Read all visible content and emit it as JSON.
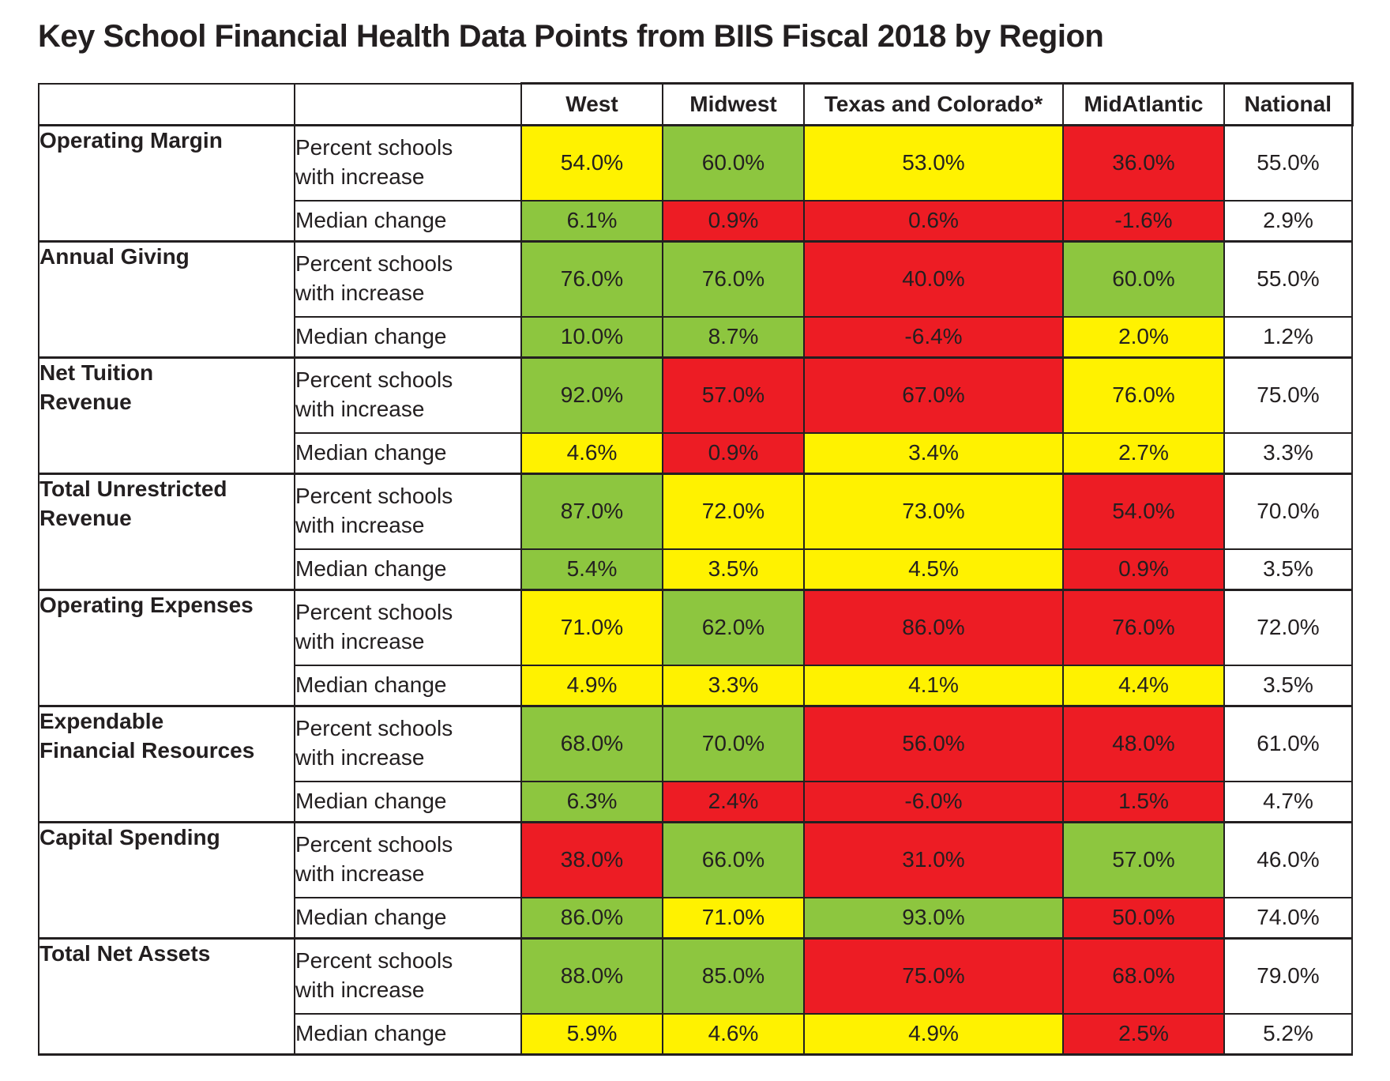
{
  "colors": {
    "green": "#8DC63F",
    "yellow": "#FFF200",
    "red": "#ED1C24",
    "none": "#FFFFFF",
    "text": "#231F20",
    "border": "#231F20"
  },
  "chart_data": {
    "type": "table",
    "title": "Key School Financial Health Data Points from BIIS Fiscal 2018 by Region",
    "region_columns": [
      "West",
      "Midwest",
      "Texas and Colorado*",
      "MidAtlantic",
      "National"
    ],
    "measure_labels": [
      "Percent schools\nwith increase",
      "Median change"
    ],
    "groups": [
      {
        "metric": "Operating Margin",
        "percent_values": [
          "54.0%",
          "60.0%",
          "53.0%",
          "36.0%",
          "55.0%"
        ],
        "percent_colors": [
          "yellow",
          "green",
          "yellow",
          "red",
          "none"
        ],
        "median_values": [
          "6.1%",
          "0.9%",
          "0.6%",
          "-1.6%",
          "2.9%"
        ],
        "median_colors": [
          "green",
          "red",
          "red",
          "red",
          "none"
        ]
      },
      {
        "metric": "Annual Giving",
        "percent_values": [
          "76.0%",
          "76.0%",
          "40.0%",
          "60.0%",
          "55.0%"
        ],
        "percent_colors": [
          "green",
          "green",
          "red",
          "green",
          "none"
        ],
        "median_values": [
          "10.0%",
          "8.7%",
          "-6.4%",
          "2.0%",
          "1.2%"
        ],
        "median_colors": [
          "green",
          "green",
          "red",
          "yellow",
          "none"
        ]
      },
      {
        "metric": "Net Tuition\nRevenue",
        "percent_values": [
          "92.0%",
          "57.0%",
          "67.0%",
          "76.0%",
          "75.0%"
        ],
        "percent_colors": [
          "green",
          "red",
          "red",
          "yellow",
          "none"
        ],
        "median_values": [
          "4.6%",
          "0.9%",
          "3.4%",
          "2.7%",
          "3.3%"
        ],
        "median_colors": [
          "yellow",
          "red",
          "yellow",
          "yellow",
          "none"
        ]
      },
      {
        "metric": "Total Unrestricted\nRevenue",
        "percent_values": [
          "87.0%",
          "72.0%",
          "73.0%",
          "54.0%",
          "70.0%"
        ],
        "percent_colors": [
          "green",
          "yellow",
          "yellow",
          "red",
          "none"
        ],
        "median_values": [
          "5.4%",
          "3.5%",
          "4.5%",
          "0.9%",
          "3.5%"
        ],
        "median_colors": [
          "green",
          "yellow",
          "yellow",
          "red",
          "none"
        ]
      },
      {
        "metric": "Operating Expenses",
        "percent_values": [
          "71.0%",
          "62.0%",
          "86.0%",
          "76.0%",
          "72.0%"
        ],
        "percent_colors": [
          "yellow",
          "green",
          "red",
          "red",
          "none"
        ],
        "median_values": [
          "4.9%",
          "3.3%",
          "4.1%",
          "4.4%",
          "3.5%"
        ],
        "median_colors": [
          "yellow",
          "yellow",
          "yellow",
          "yellow",
          "none"
        ]
      },
      {
        "metric": "Expendable\nFinancial Resources",
        "percent_values": [
          "68.0%",
          "70.0%",
          "56.0%",
          "48.0%",
          "61.0%"
        ],
        "percent_colors": [
          "green",
          "green",
          "red",
          "red",
          "none"
        ],
        "median_values": [
          "6.3%",
          "2.4%",
          "-6.0%",
          "1.5%",
          "4.7%"
        ],
        "median_colors": [
          "green",
          "red",
          "red",
          "red",
          "none"
        ]
      },
      {
        "metric": "Capital Spending",
        "percent_values": [
          "38.0%",
          "66.0%",
          "31.0%",
          "57.0%",
          "46.0%"
        ],
        "percent_colors": [
          "red",
          "green",
          "red",
          "green",
          "none"
        ],
        "median_values": [
          "86.0%",
          "71.0%",
          "93.0%",
          "50.0%",
          "74.0%"
        ],
        "median_colors": [
          "green",
          "yellow",
          "green",
          "red",
          "none"
        ]
      },
      {
        "metric": "Total Net Assets",
        "percent_values": [
          "88.0%",
          "85.0%",
          "75.0%",
          "68.0%",
          "79.0%"
        ],
        "percent_colors": [
          "green",
          "green",
          "red",
          "red",
          "none"
        ],
        "median_values": [
          "5.9%",
          "4.6%",
          "4.9%",
          "2.5%",
          "5.2%"
        ],
        "median_colors": [
          "yellow",
          "yellow",
          "yellow",
          "red",
          "none"
        ]
      }
    ]
  }
}
